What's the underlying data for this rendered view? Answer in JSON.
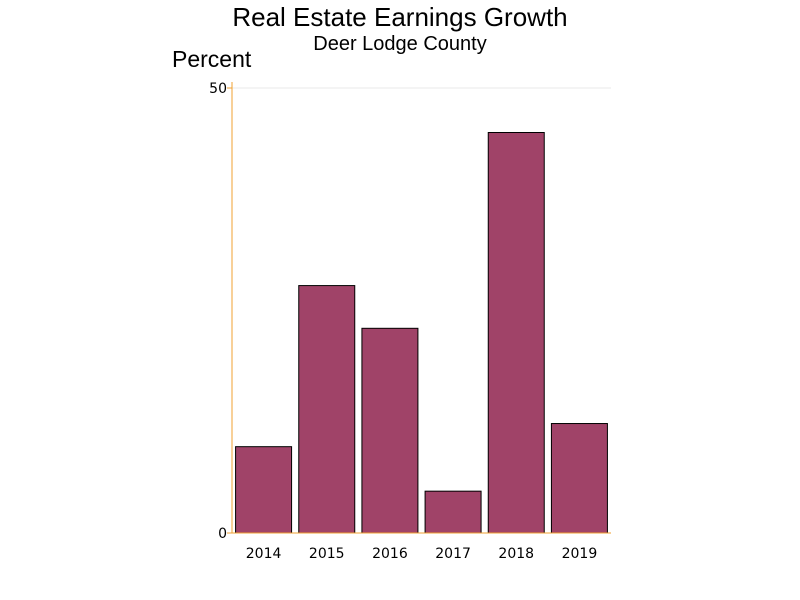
{
  "chart_data": {
    "type": "bar",
    "title": "Real Estate Earnings Growth",
    "subtitle": "Deer Lodge County",
    "ylabel": "Percent",
    "xlabel": "",
    "categories": [
      "2014",
      "2015",
      "2016",
      "2017",
      "2018",
      "2019"
    ],
    "values": [
      9.7,
      27.8,
      23.0,
      4.7,
      45.0,
      12.3
    ],
    "ylim": [
      0,
      50
    ],
    "yticks": [
      0,
      50
    ],
    "grid": true,
    "colors": {
      "bar_fill": "#a04368",
      "bar_stroke": "#000000",
      "axis": "#f0a030",
      "grid": "#e8e8e8"
    }
  }
}
